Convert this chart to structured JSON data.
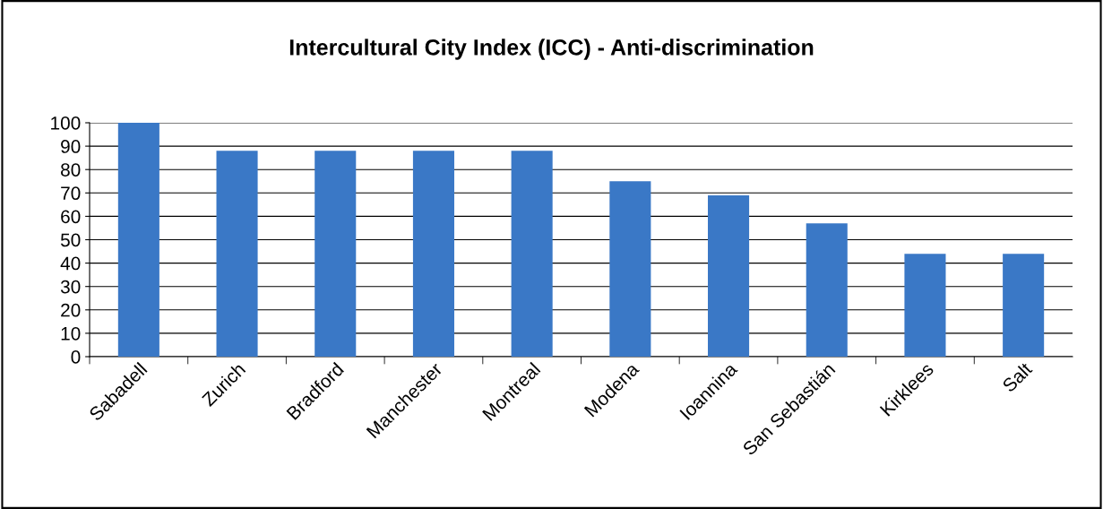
{
  "chart_data": {
    "type": "bar",
    "title": "Intercultural City Index (ICC) - Anti-discrimination",
    "categories": [
      "Sabadell",
      "Zurich",
      "Bradford",
      "Manchester",
      "Montreal",
      "Modena",
      "Ioannina",
      "San Sebastián",
      "Kirklees",
      "Salt"
    ],
    "values": [
      100,
      88,
      88,
      88,
      88,
      75,
      69,
      57,
      44,
      44
    ],
    "color": "#3a78c6",
    "ylim": [
      0,
      100
    ],
    "yticks": [
      0,
      10,
      20,
      30,
      40,
      50,
      60,
      70,
      80,
      90,
      100
    ],
    "grid": "y",
    "legend": false
  }
}
